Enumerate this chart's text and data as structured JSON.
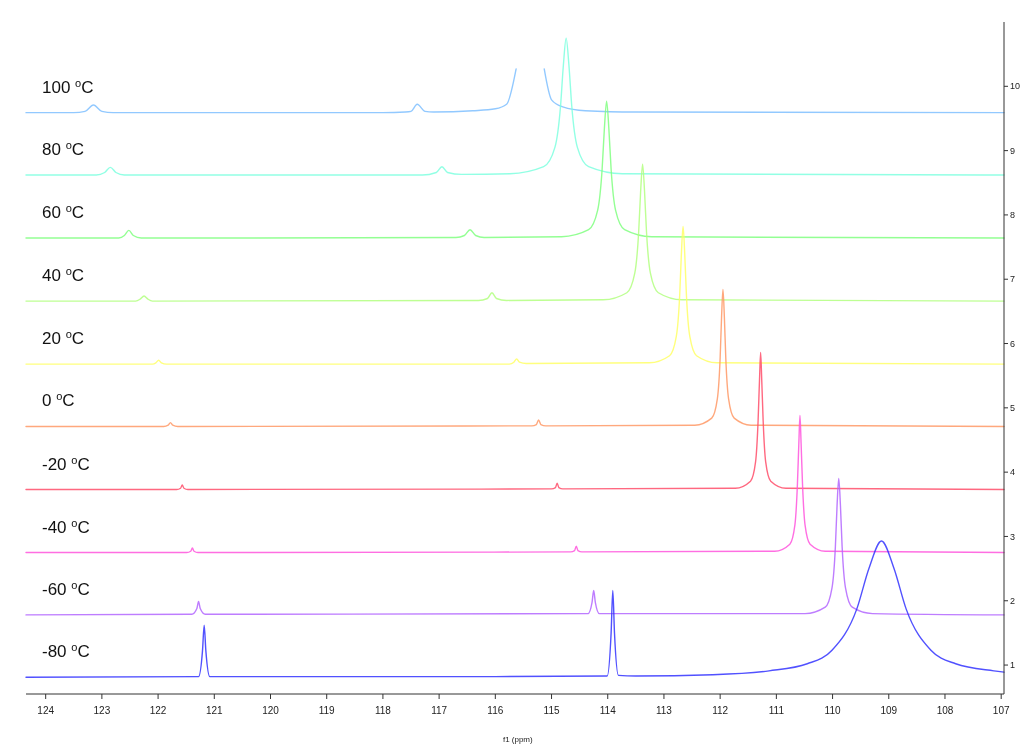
{
  "chart_data": {
    "type": "line",
    "xlabel": "f1 (ppm)",
    "xlim": [
      124.35,
      106.95
    ],
    "xticks": [
      124,
      123,
      122,
      121,
      120,
      119,
      118,
      117,
      116,
      115,
      114,
      113,
      112,
      111,
      110,
      109,
      108,
      107
    ],
    "ylim": [
      0.55,
      11
    ],
    "yticks": [
      1,
      2,
      3,
      4,
      5,
      6,
      7,
      8,
      9,
      10
    ],
    "line_style": "solid",
    "marker": "none",
    "series": [
      {
        "name": "100 $^{o}$C",
        "color": "#7fbfff",
        "x": [
          124.35,
          123.5,
          123.3,
          123.15,
          123.0,
          122.8,
          118,
          117.6,
          117.5,
          117.39,
          117.25,
          117.1,
          116.4,
          116.0,
          115.8,
          115.63,
          115.46,
          115.27,
          115.13,
          115.0,
          114.8,
          114.4,
          113.5,
          106.95
        ],
        "values": [
          9.59,
          9.59,
          9.61,
          9.71,
          9.61,
          9.59,
          9.59,
          9.6,
          9.61,
          9.72,
          9.61,
          9.6,
          9.62,
          9.65,
          9.72,
          10.27,
          null,
          null,
          10.27,
          9.79,
          9.68,
          9.62,
          9.6,
          9.59
        ]
      },
      {
        "name": "80 $^{o}$C",
        "color": "#7fffdf",
        "x": [
          124.35,
          123.1,
          122.95,
          122.85,
          122.75,
          122.6,
          117.3,
          117.05,
          116.95,
          116.85,
          116.6,
          115.74,
          115.14,
          114.94,
          114.84,
          114.79,
          114.74,
          114.69,
          114.64,
          114.54,
          114.34,
          113.74,
          106.95
        ],
        "values": [
          8.62,
          8.62,
          8.66,
          8.74,
          8.66,
          8.62,
          8.62,
          8.66,
          8.75,
          8.66,
          8.63,
          8.64,
          8.75,
          9.05,
          9.69,
          10.32,
          10.75,
          10.32,
          9.69,
          9.05,
          8.75,
          8.64,
          8.62
        ]
      },
      {
        "name": "60 $^{o}$C",
        "color": "#80ff80",
        "x": [
          124.35,
          122.7,
          122.6,
          122.52,
          122.44,
          122.3,
          116.7,
          116.55,
          116.45,
          116.35,
          116.2,
          114.82,
          114.34,
          114.18,
          114.1,
          114.06,
          114.02,
          113.98,
          113.94,
          113.86,
          113.7,
          113.22,
          106.95
        ],
        "values": [
          7.64,
          7.64,
          7.68,
          7.76,
          7.68,
          7.64,
          7.65,
          7.68,
          7.77,
          7.68,
          7.65,
          7.66,
          7.77,
          8.07,
          8.71,
          9.34,
          9.77,
          9.34,
          8.71,
          8.07,
          7.77,
          7.66,
          7.64
        ]
      },
      {
        "name": "40 $^{o}$C",
        "color": "#b3ff80",
        "x": [
          124.35,
          122.4,
          122.32,
          122.25,
          122.18,
          122.1,
          116.3,
          116.14,
          116.06,
          115.98,
          115.8,
          114.08,
          113.66,
          113.52,
          113.45,
          113.415,
          113.38,
          113.345,
          113.31,
          113.24,
          113.1,
          112.68,
          106.95
        ],
        "values": [
          6.66,
          6.66,
          6.69,
          6.74,
          6.69,
          6.66,
          6.67,
          6.7,
          6.79,
          6.7,
          6.67,
          6.68,
          6.79,
          7.09,
          7.73,
          8.36,
          8.79,
          8.36,
          7.73,
          7.09,
          6.79,
          6.68,
          6.66
        ]
      },
      {
        "name": "20 $^{o}$C",
        "color": "#ffff66",
        "x": [
          124.35,
          122.1,
          122.04,
          121.99,
          121.94,
          121.85,
          115.75,
          115.67,
          115.62,
          115.57,
          115.45,
          113.26,
          112.9,
          112.78,
          112.72,
          112.69,
          112.66,
          112.63,
          112.6,
          112.54,
          112.42,
          112.06,
          106.95
        ],
        "values": [
          5.68,
          5.68,
          5.7,
          5.74,
          5.7,
          5.68,
          5.68,
          5.71,
          5.76,
          5.71,
          5.69,
          5.7,
          5.81,
          6.11,
          6.75,
          7.39,
          7.82,
          7.39,
          6.75,
          6.11,
          5.81,
          5.7,
          5.68
        ]
      },
      {
        "name": "0 $^{o}$C",
        "color": "#ff9966",
        "x": [
          124.35,
          121.9,
          121.82,
          121.78,
          121.74,
          121.65,
          115.35,
          115.27,
          115.23,
          115.19,
          115.1,
          112.45,
          112.15,
          112.05,
          112.0,
          111.975,
          111.95,
          111.925,
          111.9,
          111.85,
          111.75,
          111.45,
          106.95
        ],
        "values": [
          4.71,
          4.71,
          4.73,
          4.77,
          4.73,
          4.71,
          4.72,
          4.74,
          4.81,
          4.74,
          4.72,
          4.73,
          4.84,
          5.14,
          5.78,
          6.41,
          6.84,
          6.41,
          5.78,
          5.14,
          4.84,
          4.73,
          4.71
        ]
      },
      {
        "name": "-20 $^{o}$C",
        "color": "#ff4d6a",
        "x": [
          124.35,
          121.67,
          121.6,
          121.57,
          121.54,
          121.47,
          115.0,
          114.93,
          114.9,
          114.87,
          114.8,
          111.73,
          111.46,
          111.37,
          111.325,
          111.3,
          111.28,
          111.26,
          111.235,
          111.19,
          111.1,
          110.83,
          106.95
        ],
        "values": [
          3.73,
          3.73,
          3.75,
          3.8,
          3.75,
          3.73,
          3.74,
          3.76,
          3.83,
          3.76,
          3.74,
          3.75,
          3.86,
          4.16,
          4.8,
          5.43,
          5.86,
          5.43,
          4.8,
          4.16,
          3.86,
          3.75,
          3.73
        ]
      },
      {
        "name": "-40 $^{o}$C",
        "color": "#ff55dd",
        "x": [
          124.35,
          121.49,
          121.42,
          121.39,
          121.36,
          121.29,
          114.66,
          114.59,
          114.56,
          114.53,
          114.46,
          111.03,
          110.76,
          110.67,
          110.625,
          110.6,
          110.58,
          110.56,
          110.535,
          110.49,
          110.4,
          110.13,
          106.95
        ],
        "values": [
          2.75,
          2.75,
          2.77,
          2.82,
          2.77,
          2.75,
          2.76,
          2.78,
          2.85,
          2.78,
          2.76,
          2.77,
          2.88,
          3.18,
          3.82,
          4.45,
          4.88,
          4.45,
          3.82,
          3.18,
          2.88,
          2.77,
          2.75
        ]
      },
      {
        "name": "-60 $^{o}$C",
        "color": "#b366ff",
        "x": [
          124.35,
          121.4,
          121.31,
          121.28,
          121.25,
          121.16,
          114.35,
          114.28,
          114.25,
          114.22,
          114.15,
          110.49,
          110.13,
          110.01,
          109.95,
          109.92,
          109.89,
          109.86,
          109.83,
          109.77,
          109.65,
          109.29,
          106.95
        ],
        "values": [
          1.78,
          1.79,
          1.88,
          1.99,
          1.88,
          1.79,
          1.8,
          1.97,
          2.16,
          1.97,
          1.8,
          1.8,
          1.9,
          2.2,
          2.84,
          3.48,
          3.9,
          3.48,
          2.84,
          2.2,
          1.9,
          1.8,
          1.78
        ]
      },
      {
        "name": "-80 $^{o}$C",
        "color": "#3333ff",
        "x": [
          124.35,
          121.28,
          121.21,
          121.18,
          121.15,
          121.08,
          116.0,
          114.01,
          113.94,
          113.91,
          113.88,
          113.81,
          113.5,
          112.13,
          111.13,
          110.45,
          110.01,
          109.57,
          109.35,
          109.13,
          108.91,
          108.69,
          108.25,
          107.81,
          107.13,
          106.95
        ],
        "values": [
          0.81,
          0.82,
          1.22,
          1.62,
          1.22,
          0.82,
          0.82,
          0.83,
          1.5,
          2.16,
          1.5,
          0.84,
          0.83,
          0.85,
          0.91,
          1.02,
          1.23,
          1.87,
          2.51,
          2.93,
          2.51,
          1.87,
          1.23,
          1.02,
          0.91,
          0.89
        ]
      }
    ]
  }
}
